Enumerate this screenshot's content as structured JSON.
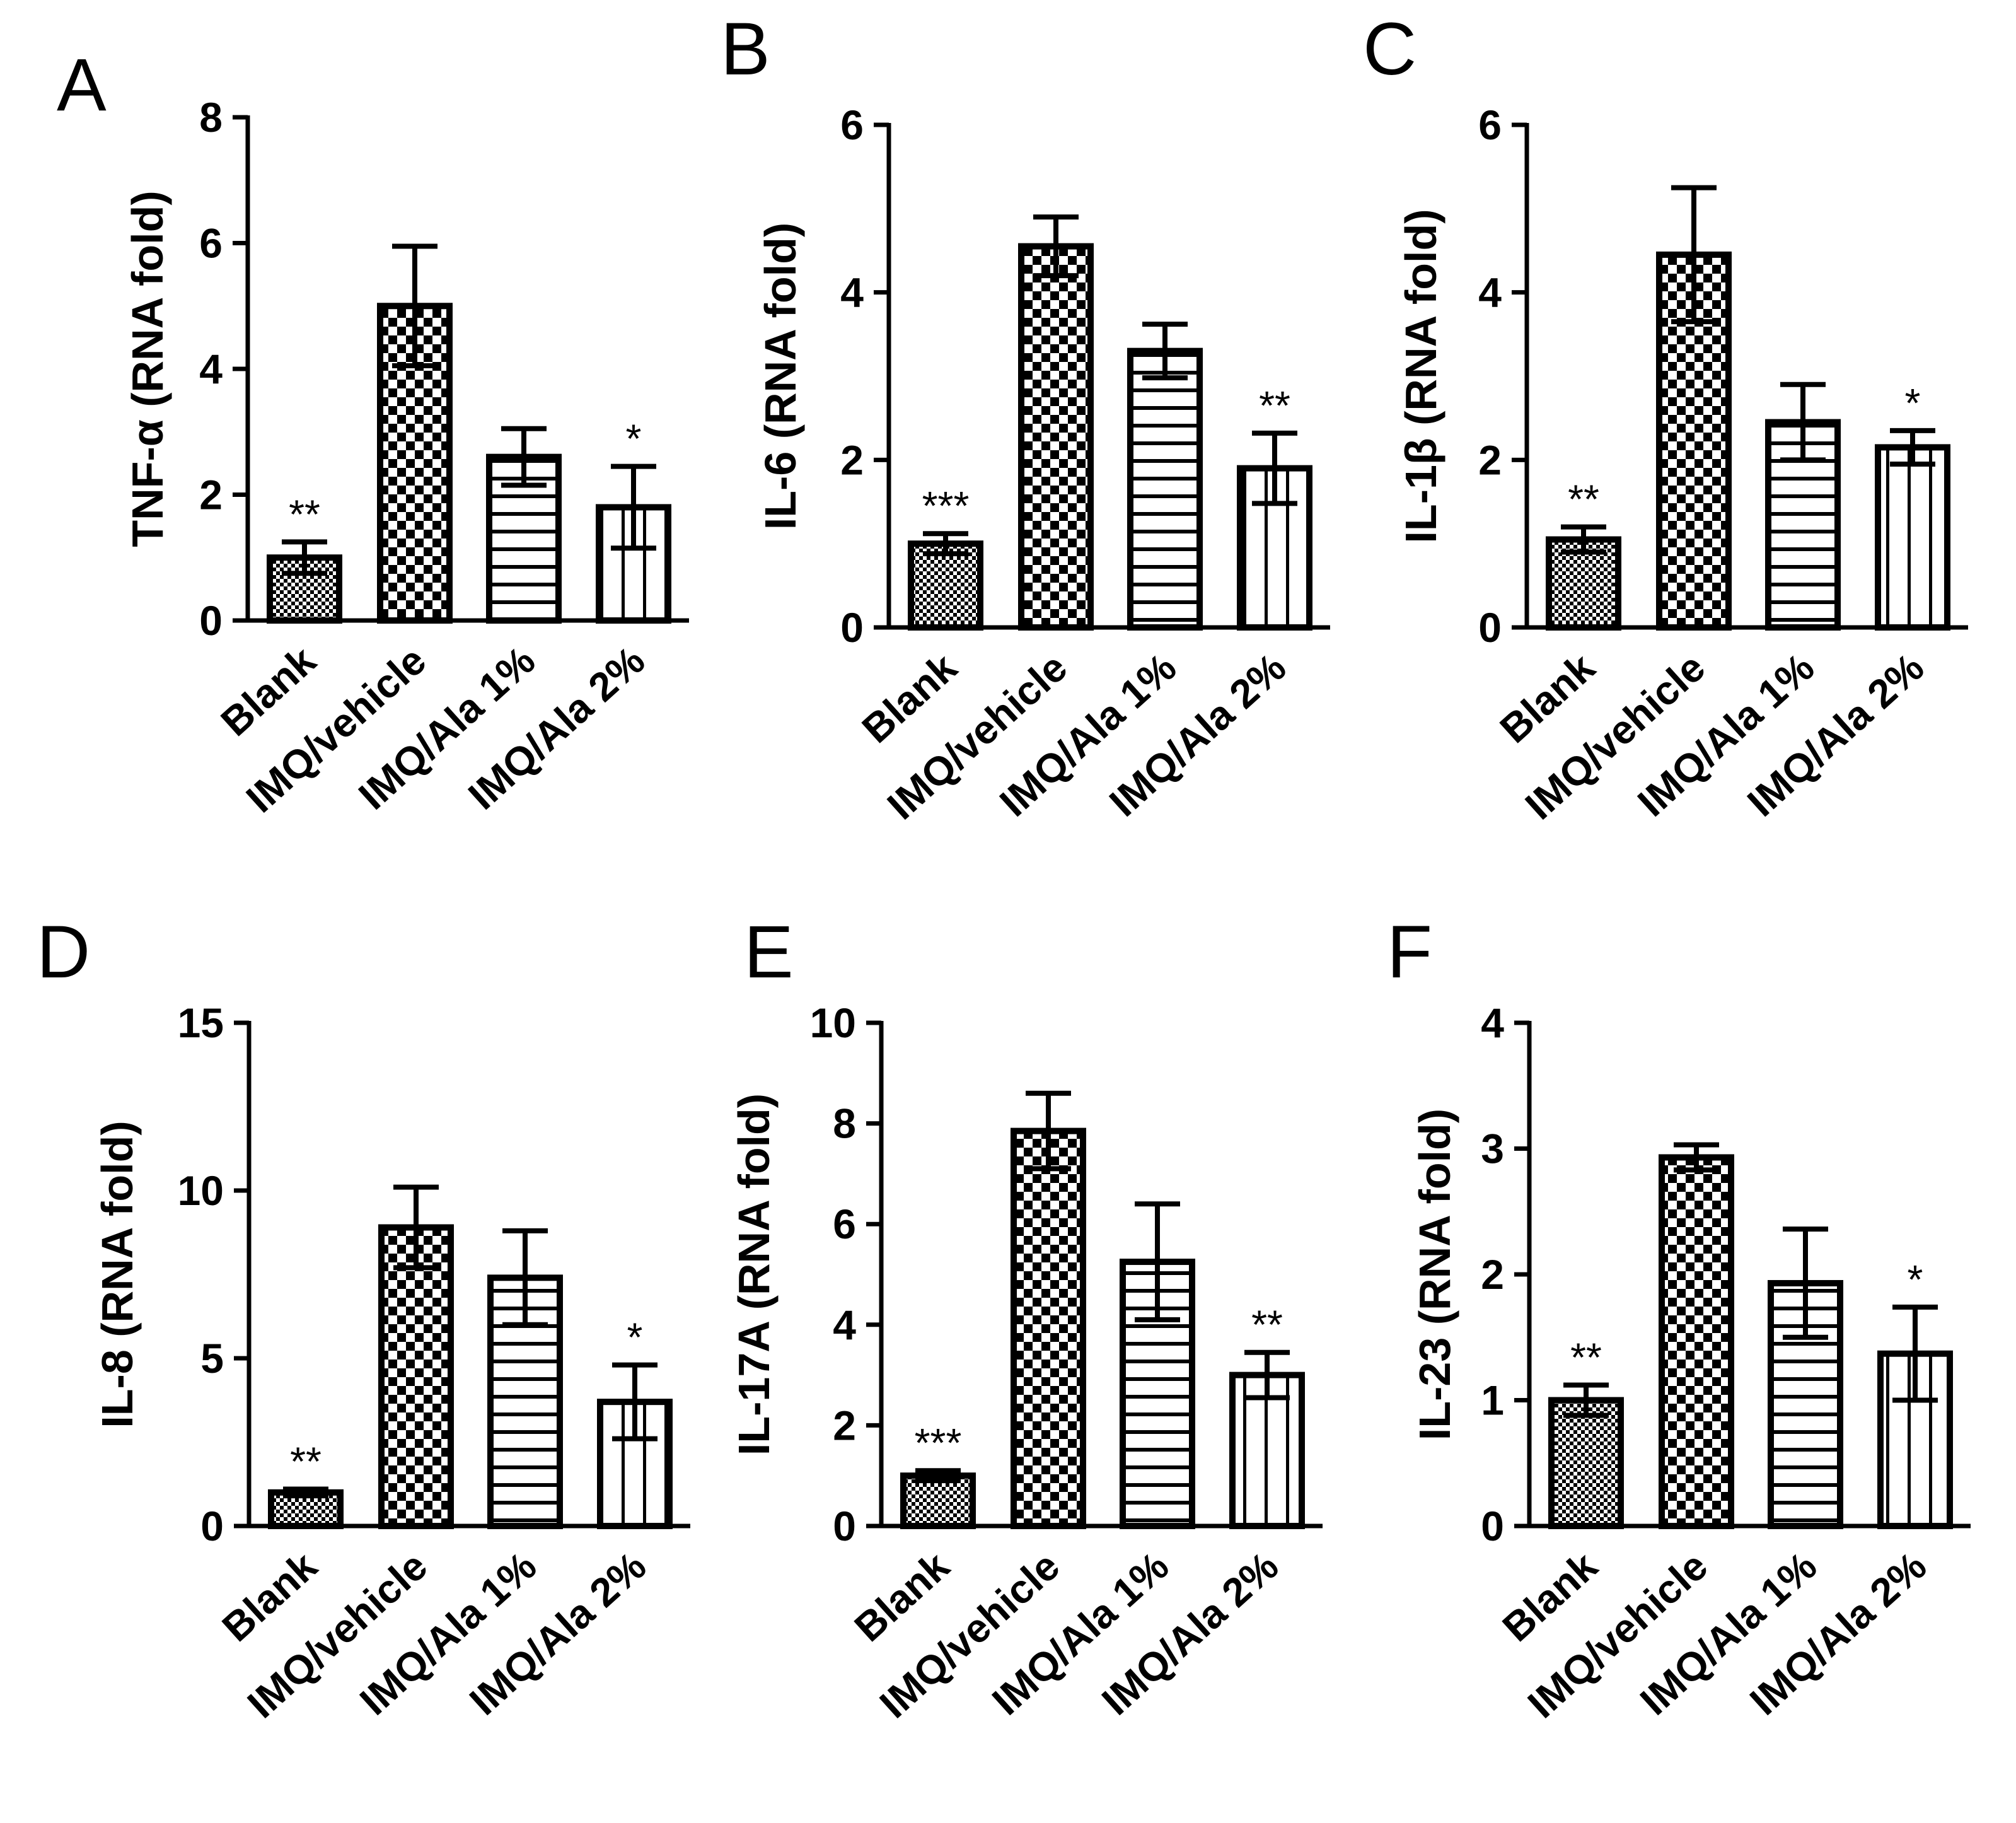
{
  "figure": {
    "categories": [
      "Blank",
      "IMQ/vehicle",
      "IMQ/Ala 1%",
      "IMQ/Ala 2%"
    ],
    "pattern_by_group": [
      "fine-checker",
      "coarse-checker",
      "horizontal-lines",
      "vertical-lines"
    ]
  },
  "chart_data": [
    {
      "panel": "A",
      "type": "bar",
      "title": "",
      "xlabel": "",
      "ylabel": "TNF-α (RNA fold)",
      "categories": [
        "Blank",
        "IMQ/vehicle",
        "IMQ/Ala 1%",
        "IMQ/Ala 2%"
      ],
      "values": [
        1.0,
        5.0,
        2.6,
        1.8
      ],
      "errors": [
        0.25,
        0.95,
        0.45,
        0.65
      ],
      "significance": [
        "**",
        "",
        "",
        "*"
      ],
      "ylim": [
        0,
        8
      ],
      "yticks": [
        "0",
        "2",
        "4",
        "6",
        "8"
      ]
    },
    {
      "panel": "B",
      "type": "bar",
      "title": "",
      "xlabel": "",
      "ylabel": "IL-6 (RNA fold)",
      "categories": [
        "Blank",
        "IMQ/vehicle",
        "IMQ/Ala 1%",
        "IMQ/Ala 2%"
      ],
      "values": [
        1.0,
        4.55,
        3.3,
        1.9
      ],
      "errors": [
        0.12,
        0.35,
        0.32,
        0.42
      ],
      "significance": [
        "***",
        "",
        "",
        "**"
      ],
      "ylim": [
        0,
        6
      ],
      "yticks": [
        "0",
        "2",
        "4",
        "6"
      ]
    },
    {
      "panel": "C",
      "type": "bar",
      "title": "",
      "xlabel": "",
      "ylabel": "IL-1β (RNA fold)",
      "categories": [
        "Blank",
        "IMQ/vehicle",
        "IMQ/Ala 1%",
        "IMQ/Ala 2%"
      ],
      "values": [
        1.05,
        4.45,
        2.45,
        2.15
      ],
      "errors": [
        0.15,
        0.8,
        0.45,
        0.2
      ],
      "significance": [
        "**",
        "",
        "",
        "*"
      ],
      "ylim": [
        0,
        6
      ],
      "yticks": [
        "0",
        "2",
        "4",
        "6"
      ]
    },
    {
      "panel": "D",
      "type": "bar",
      "title": "",
      "xlabel": "",
      "ylabel": "IL-8 (RNA fold)",
      "categories": [
        "Blank",
        "IMQ/vehicle",
        "IMQ/Ala 1%",
        "IMQ/Ala 2%"
      ],
      "values": [
        1.0,
        8.9,
        7.4,
        3.7
      ],
      "errors": [
        0.1,
        1.2,
        1.4,
        1.1
      ],
      "significance": [
        "**",
        "",
        "",
        "*"
      ],
      "ylim": [
        0,
        15
      ],
      "yticks": [
        "0",
        "5",
        "10",
        "15"
      ]
    },
    {
      "panel": "E",
      "type": "bar",
      "title": "",
      "xlabel": "",
      "ylabel": "IL-17A (RNA fold)",
      "categories": [
        "Blank",
        "IMQ/vehicle",
        "IMQ/Ala 1%",
        "IMQ/Ala 2%"
      ],
      "values": [
        1.0,
        7.85,
        5.25,
        3.0
      ],
      "errors": [
        0.1,
        0.75,
        1.15,
        0.45
      ],
      "significance": [
        "***",
        "",
        "",
        "**"
      ],
      "ylim": [
        0,
        10
      ],
      "yticks": [
        "0",
        "2",
        "4",
        "6",
        "8",
        "10"
      ]
    },
    {
      "panel": "F",
      "type": "bar",
      "title": "",
      "xlabel": "",
      "ylabel": "IL-23 (RNA fold)",
      "categories": [
        "Blank",
        "IMQ/vehicle",
        "IMQ/Ala 1%",
        "IMQ/Ala 2%"
      ],
      "values": [
        1.0,
        2.93,
        1.93,
        1.37
      ],
      "errors": [
        0.12,
        0.1,
        0.43,
        0.37
      ],
      "significance": [
        "**",
        "",
        "",
        "*"
      ],
      "ylim": [
        0,
        4
      ],
      "yticks": [
        "0",
        "1",
        "2",
        "3",
        "4"
      ]
    }
  ]
}
